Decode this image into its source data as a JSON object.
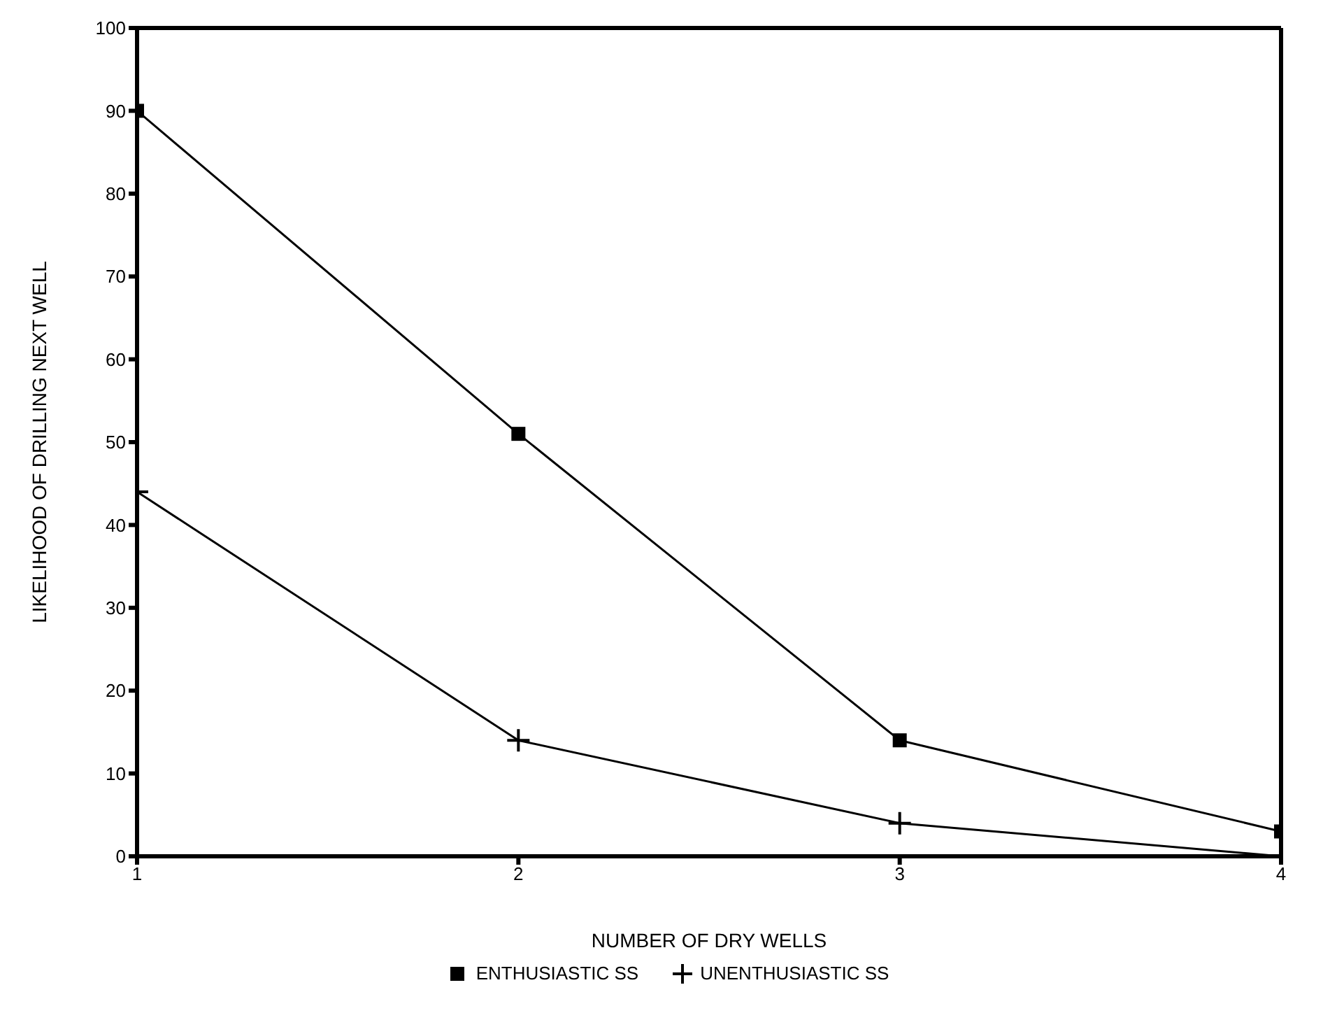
{
  "chart_data": {
    "type": "line",
    "xlabel": "NUMBER OF DRY WELLS",
    "ylabel": "LIKELIHOOD OF DRILLING NEXT WELL",
    "x": [
      1,
      2,
      3,
      4
    ],
    "series": [
      {
        "name": "ENTHUSIASTIC SS",
        "color": "#000000",
        "marker": "square",
        "values": [
          90,
          51,
          14,
          3
        ]
      },
      {
        "name": "UNENTHUSIASTIC SS",
        "color": "#000000",
        "marker": "cross",
        "values": [
          44,
          14,
          4,
          0
        ]
      }
    ],
    "xlim": [
      1,
      4
    ],
    "xticks": [
      1,
      2,
      3,
      4
    ],
    "ylim": [
      0,
      100
    ],
    "yticks": [
      0,
      10,
      20,
      30,
      40,
      50,
      60,
      70,
      80,
      90,
      100
    ],
    "grid": false,
    "legend": "bottom",
    "line_style": "solid"
  }
}
